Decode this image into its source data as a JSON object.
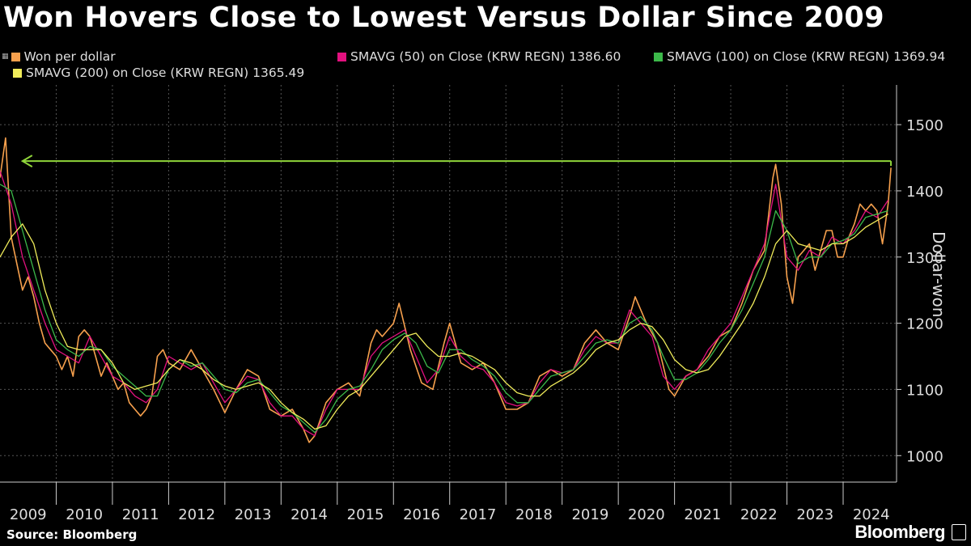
{
  "title": "Won Hovers Close to Lowest Versus Dollar Since 2009",
  "source": "Source: Bloomberg",
  "brand": "Bloomberg",
  "colors": {
    "background": "#000000",
    "won": "#f6a04d",
    "sma50": "#e3117f",
    "sma100": "#3cb94a",
    "sma200": "#f0ec5a",
    "annotation": "#8fd53a",
    "grid": "#555555",
    "axis": "#cccccc"
  },
  "legend": [
    {
      "key": "won",
      "label": "Won per dollar"
    },
    {
      "key": "sma50",
      "label": "SMAVG (50)  on Close (KRW REGN) 1386.60"
    },
    {
      "key": "sma100",
      "label": "SMAVG (100)  on Close (KRW REGN) 1369.94"
    },
    {
      "key": "sma200",
      "label": "SMAVG (200)  on Close (KRW REGN) 1365.49"
    }
  ],
  "chart_data": {
    "type": "line",
    "title": "Won Hovers Close to Lowest Versus Dollar Since 2009",
    "xlabel": "",
    "ylabel": "Dollar-won",
    "ylim": [
      960,
      1560
    ],
    "xlim": [
      2009.0,
      2024.95
    ],
    "yticks": [
      1000,
      1100,
      1200,
      1300,
      1400,
      1500
    ],
    "xtick_labels": [
      "2009",
      "2010",
      "2011",
      "2012",
      "2013",
      "2014",
      "2015",
      "2016",
      "2017",
      "2018",
      "2019",
      "2020",
      "2021",
      "2022",
      "2023",
      "2024"
    ],
    "grid": true,
    "legend_position": "top",
    "annotation": {
      "type": "horizontal-arrow",
      "y": 1445,
      "from_x": 2024.85,
      "to_x": 2009.4,
      "direction": "left"
    },
    "series": [
      {
        "name": "Won per dollar",
        "key": "won",
        "x": [
          2009.0,
          2009.1,
          2009.2,
          2009.3,
          2009.4,
          2009.5,
          2009.6,
          2009.7,
          2009.8,
          2009.9,
          2010.0,
          2010.1,
          2010.2,
          2010.3,
          2010.4,
          2010.5,
          2010.6,
          2010.7,
          2010.8,
          2010.9,
          2011.0,
          2011.1,
          2011.2,
          2011.3,
          2011.4,
          2011.5,
          2011.6,
          2011.7,
          2011.8,
          2011.9,
          2012.0,
          2012.2,
          2012.4,
          2012.6,
          2012.8,
          2013.0,
          2013.2,
          2013.4,
          2013.6,
          2013.8,
          2014.0,
          2014.2,
          2014.4,
          2014.5,
          2014.6,
          2014.8,
          2015.0,
          2015.2,
          2015.4,
          2015.6,
          2015.7,
          2015.8,
          2016.0,
          2016.1,
          2016.3,
          2016.5,
          2016.7,
          2016.9,
          2017.0,
          2017.2,
          2017.4,
          2017.6,
          2017.8,
          2018.0,
          2018.2,
          2018.4,
          2018.6,
          2018.8,
          2019.0,
          2019.2,
          2019.4,
          2019.6,
          2019.8,
          2020.0,
          2020.2,
          2020.3,
          2020.5,
          2020.7,
          2020.9,
          2021.0,
          2021.2,
          2021.4,
          2021.6,
          2021.8,
          2022.0,
          2022.2,
          2022.4,
          2022.6,
          2022.75,
          2022.8,
          2022.9,
          2023.0,
          2023.1,
          2023.2,
          2023.3,
          2023.4,
          2023.5,
          2023.6,
          2023.7,
          2023.8,
          2023.9,
          2024.0,
          2024.1,
          2024.2,
          2024.3,
          2024.4,
          2024.5,
          2024.6,
          2024.7,
          2024.8,
          2024.85
        ],
        "values": [
          1420,
          1480,
          1330,
          1290,
          1250,
          1270,
          1240,
          1200,
          1170,
          1160,
          1150,
          1130,
          1150,
          1120,
          1180,
          1190,
          1180,
          1150,
          1120,
          1140,
          1120,
          1100,
          1110,
          1080,
          1070,
          1060,
          1070,
          1090,
          1150,
          1160,
          1140,
          1130,
          1160,
          1130,
          1100,
          1065,
          1100,
          1130,
          1120,
          1070,
          1060,
          1070,
          1040,
          1020,
          1030,
          1080,
          1100,
          1110,
          1090,
          1170,
          1190,
          1180,
          1200,
          1230,
          1160,
          1110,
          1100,
          1170,
          1200,
          1140,
          1130,
          1140,
          1110,
          1070,
          1070,
          1080,
          1120,
          1130,
          1120,
          1130,
          1170,
          1190,
          1170,
          1160,
          1210,
          1240,
          1200,
          1170,
          1100,
          1090,
          1120,
          1130,
          1150,
          1180,
          1190,
          1230,
          1280,
          1310,
          1420,
          1440,
          1380,
          1270,
          1230,
          1300,
          1310,
          1320,
          1280,
          1310,
          1340,
          1340,
          1300,
          1300,
          1330,
          1350,
          1380,
          1370,
          1380,
          1370,
          1320,
          1380,
          1435
        ]
      },
      {
        "name": "SMAVG (50)  on Close (KRW REGN)",
        "key": "sma50",
        "x": [
          2009.0,
          2009.2,
          2009.4,
          2009.6,
          2009.8,
          2010.0,
          2010.2,
          2010.4,
          2010.6,
          2010.8,
          2011.0,
          2011.2,
          2011.4,
          2011.6,
          2011.8,
          2012.0,
          2012.2,
          2012.4,
          2012.6,
          2012.8,
          2013.0,
          2013.2,
          2013.4,
          2013.6,
          2013.8,
          2014.0,
          2014.2,
          2014.4,
          2014.6,
          2014.8,
          2015.0,
          2015.2,
          2015.4,
          2015.6,
          2015.8,
          2016.0,
          2016.2,
          2016.4,
          2016.6,
          2016.8,
          2017.0,
          2017.2,
          2017.4,
          2017.6,
          2017.8,
          2018.0,
          2018.2,
          2018.4,
          2018.6,
          2018.8,
          2019.0,
          2019.2,
          2019.4,
          2019.6,
          2019.8,
          2020.0,
          2020.2,
          2020.4,
          2020.6,
          2020.8,
          2021.0,
          2021.2,
          2021.4,
          2021.6,
          2021.8,
          2022.0,
          2022.2,
          2022.4,
          2022.6,
          2022.8,
          2023.0,
          2023.2,
          2023.4,
          2023.6,
          2023.8,
          2024.0,
          2024.2,
          2024.4,
          2024.6,
          2024.8
        ],
        "values": [
          1430,
          1380,
          1300,
          1250,
          1200,
          1160,
          1150,
          1140,
          1180,
          1150,
          1120,
          1110,
          1090,
          1080,
          1100,
          1150,
          1140,
          1130,
          1140,
          1110,
          1080,
          1100,
          1120,
          1115,
          1080,
          1060,
          1060,
          1040,
          1030,
          1070,
          1100,
          1100,
          1100,
          1150,
          1170,
          1180,
          1190,
          1150,
          1110,
          1130,
          1180,
          1150,
          1135,
          1130,
          1110,
          1080,
          1075,
          1080,
          1110,
          1130,
          1125,
          1130,
          1160,
          1180,
          1170,
          1170,
          1220,
          1200,
          1180,
          1120,
          1100,
          1120,
          1130,
          1160,
          1180,
          1200,
          1240,
          1280,
          1320,
          1410,
          1300,
          1280,
          1310,
          1300,
          1330,
          1320,
          1340,
          1370,
          1360,
          1386
        ]
      },
      {
        "name": "SMAVG (100)  on Close (KRW REGN)",
        "key": "sma100",
        "x": [
          2009.0,
          2009.2,
          2009.4,
          2009.6,
          2009.8,
          2010.0,
          2010.2,
          2010.4,
          2010.6,
          2010.8,
          2011.0,
          2011.2,
          2011.4,
          2011.6,
          2011.8,
          2012.0,
          2012.2,
          2012.4,
          2012.6,
          2012.8,
          2013.0,
          2013.2,
          2013.4,
          2013.6,
          2013.8,
          2014.0,
          2014.2,
          2014.4,
          2014.6,
          2014.8,
          2015.0,
          2015.2,
          2015.4,
          2015.6,
          2015.8,
          2016.0,
          2016.2,
          2016.4,
          2016.6,
          2016.8,
          2017.0,
          2017.2,
          2017.4,
          2017.6,
          2017.8,
          2018.0,
          2018.2,
          2018.4,
          2018.6,
          2018.8,
          2019.0,
          2019.2,
          2019.4,
          2019.6,
          2019.8,
          2020.0,
          2020.2,
          2020.4,
          2020.6,
          2020.8,
          2021.0,
          2021.2,
          2021.4,
          2021.6,
          2021.8,
          2022.0,
          2022.2,
          2022.4,
          2022.6,
          2022.8,
          2023.0,
          2023.2,
          2023.4,
          2023.6,
          2023.8,
          2024.0,
          2024.2,
          2024.4,
          2024.6,
          2024.8
        ],
        "values": [
          1410,
          1400,
          1340,
          1280,
          1220,
          1175,
          1160,
          1150,
          1165,
          1160,
          1135,
          1120,
          1105,
          1090,
          1090,
          1130,
          1145,
          1135,
          1140,
          1120,
          1100,
          1095,
          1110,
          1115,
          1095,
          1075,
          1065,
          1050,
          1035,
          1055,
          1085,
          1100,
          1105,
          1130,
          1160,
          1175,
          1185,
          1170,
          1135,
          1125,
          1160,
          1160,
          1145,
          1135,
          1120,
          1095,
          1080,
          1080,
          1100,
          1120,
          1125,
          1130,
          1150,
          1170,
          1175,
          1170,
          1200,
          1210,
          1190,
          1150,
          1115,
          1115,
          1125,
          1145,
          1170,
          1190,
          1220,
          1260,
          1300,
          1370,
          1340,
          1290,
          1300,
          1300,
          1320,
          1325,
          1335,
          1360,
          1365,
          1370
        ]
      },
      {
        "name": "SMAVG (200)  on Close (KRW REGN)",
        "key": "sma200",
        "x": [
          2009.0,
          2009.2,
          2009.4,
          2009.6,
          2009.8,
          2010.0,
          2010.2,
          2010.4,
          2010.6,
          2010.8,
          2011.0,
          2011.2,
          2011.4,
          2011.6,
          2011.8,
          2012.0,
          2012.2,
          2012.4,
          2012.6,
          2012.8,
          2013.0,
          2013.2,
          2013.4,
          2013.6,
          2013.8,
          2014.0,
          2014.2,
          2014.4,
          2014.6,
          2014.8,
          2015.0,
          2015.2,
          2015.4,
          2015.6,
          2015.8,
          2016.0,
          2016.2,
          2016.4,
          2016.6,
          2016.8,
          2017.0,
          2017.2,
          2017.4,
          2017.6,
          2017.8,
          2018.0,
          2018.2,
          2018.4,
          2018.6,
          2018.8,
          2019.0,
          2019.2,
          2019.4,
          2019.6,
          2019.8,
          2020.0,
          2020.2,
          2020.4,
          2020.6,
          2020.8,
          2021.0,
          2021.2,
          2021.4,
          2021.6,
          2021.8,
          2022.0,
          2022.2,
          2022.4,
          2022.6,
          2022.8,
          2023.0,
          2023.2,
          2023.4,
          2023.6,
          2023.8,
          2024.0,
          2024.2,
          2024.4,
          2024.6,
          2024.8
        ],
        "values": [
          1300,
          1330,
          1350,
          1320,
          1250,
          1200,
          1165,
          1160,
          1160,
          1160,
          1140,
          1110,
          1100,
          1105,
          1110,
          1130,
          1145,
          1140,
          1130,
          1115,
          1105,
          1100,
          1105,
          1110,
          1100,
          1080,
          1065,
          1055,
          1040,
          1045,
          1070,
          1090,
          1100,
          1120,
          1140,
          1160,
          1180,
          1185,
          1165,
          1150,
          1150,
          1155,
          1150,
          1140,
          1130,
          1110,
          1095,
          1090,
          1090,
          1105,
          1115,
          1125,
          1140,
          1160,
          1170,
          1175,
          1190,
          1200,
          1195,
          1175,
          1145,
          1130,
          1125,
          1130,
          1150,
          1175,
          1200,
          1230,
          1270,
          1320,
          1340,
          1320,
          1315,
          1310,
          1320,
          1320,
          1330,
          1345,
          1355,
          1365
        ]
      }
    ]
  }
}
